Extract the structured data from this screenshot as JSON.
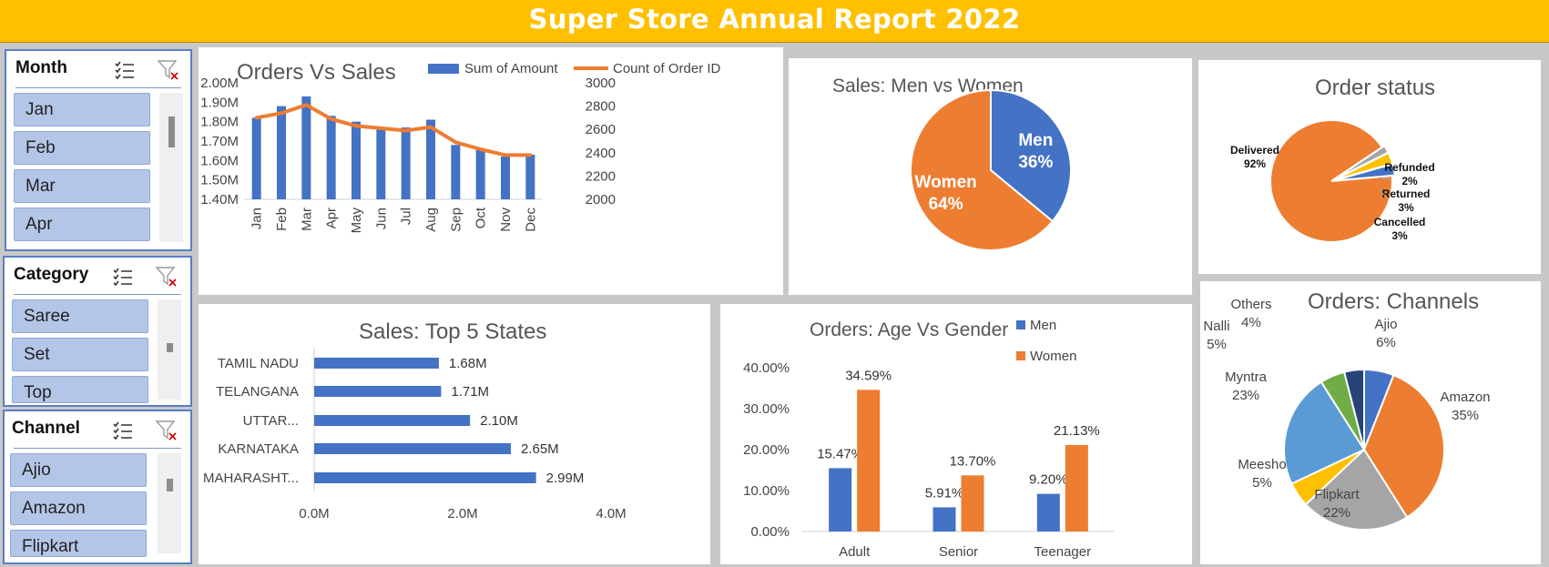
{
  "title": "Super Store Annual Report 2022",
  "slicers": [
    {
      "title": "Month",
      "items": [
        "Jan",
        "Feb",
        "Mar",
        "Apr"
      ]
    },
    {
      "title": "Category",
      "items": [
        "Saree",
        "Set",
        "Top"
      ]
    },
    {
      "title": "Channel",
      "items": [
        "Ajio",
        "Amazon",
        "Flipkart"
      ]
    }
  ],
  "colors": {
    "blue": "#4472c4",
    "orange": "#ed7d31",
    "gray": "#a5a5a5",
    "yellow": "#ffc000",
    "lightblue": "#5b9bd5",
    "green": "#70ad47",
    "navy": "#264478",
    "banner": "#ffc000"
  },
  "chart_data": [
    {
      "id": "orders_vs_sales",
      "type": "bar+line",
      "title": "Orders Vs Sales",
      "categories": [
        "Jan",
        "Feb",
        "Mar",
        "Apr",
        "May",
        "Jun",
        "Jul",
        "Aug",
        "Sep",
        "Oct",
        "Nov",
        "Dec"
      ],
      "series": [
        {
          "name": "Sum of Amount",
          "type": "bar",
          "axis": "left",
          "values": [
            1.82,
            1.88,
            1.93,
            1.83,
            1.8,
            1.76,
            1.77,
            1.81,
            1.68,
            1.66,
            1.62,
            1.63
          ]
        },
        {
          "name": "Count of Order ID",
          "type": "line",
          "axis": "right",
          "values": [
            2700,
            2740,
            2810,
            2690,
            2630,
            2610,
            2590,
            2620,
            2490,
            2430,
            2380,
            2380
          ]
        }
      ],
      "y_left_ticks": [
        "2.00M",
        "1.90M",
        "1.80M",
        "1.70M",
        "1.60M",
        "1.50M",
        "1.40M"
      ],
      "ylim_left": [
        1.4,
        2.0
      ],
      "y_right_ticks": [
        "3000",
        "2800",
        "2600",
        "2400",
        "2200",
        "2000"
      ],
      "ylim_right": [
        2000,
        3000
      ],
      "legend": "top"
    },
    {
      "id": "men_vs_women",
      "type": "pie",
      "title": "Sales: Men vs Women",
      "slices": [
        {
          "label": "Men",
          "pct": "36%",
          "value": 36
        },
        {
          "label": "Women",
          "pct": "64%",
          "value": 64
        }
      ]
    },
    {
      "id": "order_status",
      "type": "pie",
      "title": "Order status",
      "slices": [
        {
          "label": "Delivered",
          "pct": "92%",
          "value": 92
        },
        {
          "label": "Refunded",
          "pct": "2%",
          "value": 2
        },
        {
          "label": "Returned",
          "pct": "3%",
          "value": 3
        },
        {
          "label": "Cancelled",
          "pct": "3%",
          "value": 3
        }
      ]
    },
    {
      "id": "top5_states",
      "type": "hbar",
      "title": "Sales: Top 5 States",
      "categories": [
        "TAMIL NADU",
        "TELANGANA",
        "UTTAR...",
        "KARNATAKA",
        "MAHARASHT..."
      ],
      "values": [
        1.68,
        1.71,
        2.1,
        2.65,
        2.99
      ],
      "data_labels": [
        "1.68M",
        "1.71M",
        "2.10M",
        "2.65M",
        "2.99M"
      ],
      "x_ticks": [
        "0.0M",
        "2.0M",
        "4.0M"
      ],
      "xlim": [
        0,
        4.0
      ]
    },
    {
      "id": "age_vs_gender",
      "type": "bar",
      "title": "Orders: Age Vs Gender",
      "categories": [
        "Adult",
        "Senior",
        "Teenager"
      ],
      "series": [
        {
          "name": "Men",
          "values": [
            15.47,
            5.91,
            9.2
          ],
          "labels": [
            "15.47%",
            "5.91%",
            "9.20%"
          ]
        },
        {
          "name": "Women",
          "values": [
            34.59,
            13.7,
            21.13
          ],
          "labels": [
            "34.59%",
            "13.70%",
            "21.13%"
          ]
        }
      ],
      "y_ticks": [
        "40.00%",
        "30.00%",
        "20.00%",
        "10.00%",
        "0.00%"
      ],
      "ylim": [
        0,
        40
      ],
      "legend": "top-right"
    },
    {
      "id": "orders_channels",
      "type": "pie",
      "title": "Orders: Channels",
      "slices": [
        {
          "label": "Ajio",
          "pct": "6%",
          "value": 6
        },
        {
          "label": "Amazon",
          "pct": "35%",
          "value": 35
        },
        {
          "label": "Flipkart",
          "pct": "22%",
          "value": 22
        },
        {
          "label": "Meesho",
          "pct": "5%",
          "value": 5
        },
        {
          "label": "Myntra",
          "pct": "23%",
          "value": 23
        },
        {
          "label": "Nalli",
          "pct": "5%",
          "value": 5
        },
        {
          "label": "Others",
          "pct": "4%",
          "value": 4
        }
      ]
    }
  ]
}
